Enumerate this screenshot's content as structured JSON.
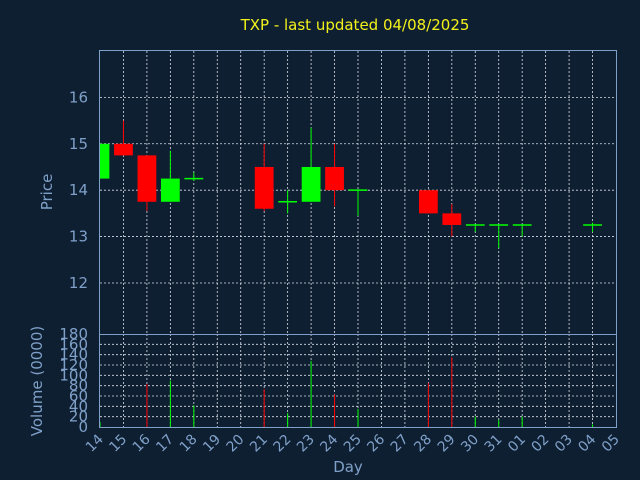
{
  "chart_data": {
    "type": "candlestick",
    "title": "TXP - last updated 04/08/2025",
    "xlabel": "Day",
    "price": {
      "ylabel": "Price",
      "ylim": [
        10.9,
        17.0
      ],
      "yticks": [
        12,
        13,
        14,
        15,
        16
      ]
    },
    "volume": {
      "ylabel": "Volume (0000)",
      "ylim": [
        0,
        180
      ],
      "yticks": [
        0,
        20,
        40,
        60,
        80,
        100,
        120,
        140,
        160,
        180
      ]
    },
    "x_labels": [
      "14",
      "15",
      "16",
      "17",
      "18",
      "19",
      "20",
      "21",
      "22",
      "23",
      "24",
      "25",
      "26",
      "27",
      "28",
      "29",
      "30",
      "31",
      "01",
      "02",
      "03",
      "04",
      "05"
    ],
    "grid": true,
    "colors": {
      "up": "#00ff00",
      "down": "#ff0000",
      "title": "#f2f21a",
      "axis": "#7fa0c8",
      "background": "#0f1f32"
    },
    "candles": [
      {
        "day": "14",
        "open": 14.25,
        "high": 15.0,
        "low": 14.25,
        "close": 15.0
      },
      {
        "day": "15",
        "open": 15.0,
        "high": 15.5,
        "low": 14.75,
        "close": 14.75
      },
      {
        "day": "16",
        "open": 14.75,
        "high": 14.75,
        "low": 13.55,
        "close": 13.75
      },
      {
        "day": "17",
        "open": 13.75,
        "high": 14.85,
        "low": 13.75,
        "close": 14.25
      },
      {
        "day": "18",
        "open": 14.25,
        "high": 14.38,
        "low": 14.2,
        "close": 14.25
      },
      {
        "day": "21",
        "open": 14.5,
        "high": 15.0,
        "low": 13.55,
        "close": 13.6
      },
      {
        "day": "22",
        "open": 13.75,
        "high": 14.0,
        "low": 13.5,
        "close": 13.75
      },
      {
        "day": "23",
        "open": 13.75,
        "high": 15.35,
        "low": 13.75,
        "close": 14.5
      },
      {
        "day": "24",
        "open": 14.5,
        "high": 15.0,
        "low": 13.65,
        "close": 14.0
      },
      {
        "day": "25",
        "open": 14.0,
        "high": 14.0,
        "low": 13.45,
        "close": 14.0
      },
      {
        "day": "28",
        "open": 14.0,
        "high": 14.0,
        "low": 13.5,
        "close": 13.5
      },
      {
        "day": "29",
        "open": 13.5,
        "high": 13.7,
        "low": 13.0,
        "close": 13.25
      },
      {
        "day": "30",
        "open": 13.25,
        "high": 13.25,
        "low": 13.1,
        "close": 13.25
      },
      {
        "day": "31",
        "open": 13.25,
        "high": 13.25,
        "low": 12.75,
        "close": 13.25
      },
      {
        "day": "01",
        "open": 13.25,
        "high": 13.25,
        "low": 13.0,
        "close": 13.25
      },
      {
        "day": "04",
        "open": 13.25,
        "high": 13.3,
        "low": 13.1,
        "close": 13.25
      }
    ],
    "volumes": [
      {
        "day": "14",
        "value": 10,
        "dir": "up"
      },
      {
        "day": "15",
        "value": 0,
        "dir": "down"
      },
      {
        "day": "16",
        "value": 83,
        "dir": "down"
      },
      {
        "day": "17",
        "value": 90,
        "dir": "up"
      },
      {
        "day": "18",
        "value": 42,
        "dir": "up"
      },
      {
        "day": "21",
        "value": 73,
        "dir": "down"
      },
      {
        "day": "22",
        "value": 27,
        "dir": "up"
      },
      {
        "day": "23",
        "value": 128,
        "dir": "up"
      },
      {
        "day": "24",
        "value": 63,
        "dir": "down"
      },
      {
        "day": "25",
        "value": 35,
        "dir": "up"
      },
      {
        "day": "28",
        "value": 85,
        "dir": "down"
      },
      {
        "day": "29",
        "value": 135,
        "dir": "down"
      },
      {
        "day": "30",
        "value": 20,
        "dir": "up"
      },
      {
        "day": "31",
        "value": 14,
        "dir": "up"
      },
      {
        "day": "01",
        "value": 20,
        "dir": "up"
      },
      {
        "day": "04",
        "value": 5,
        "dir": "up"
      }
    ]
  }
}
